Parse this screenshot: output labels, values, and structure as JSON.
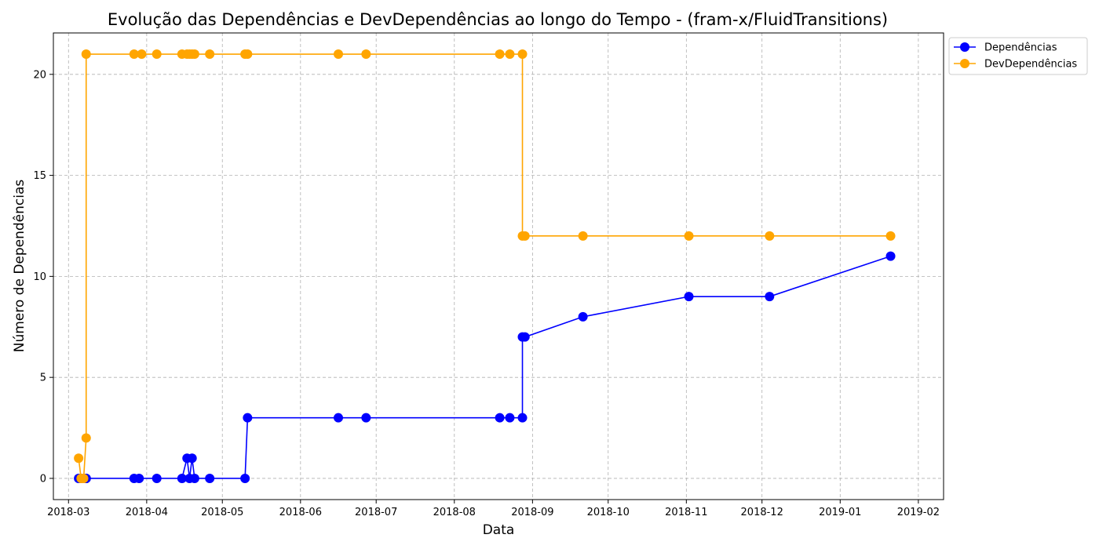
{
  "chart_data": {
    "type": "line",
    "title": "Evolução das Dependências e DevDependências ao longo do Tempo - (fram-x/FluidTransitions)",
    "xlabel": "Data",
    "ylabel": "Número de Dependências",
    "x_ticks": [
      "2018-03",
      "2018-04",
      "2018-05",
      "2018-06",
      "2018-07",
      "2018-08",
      "2018-09",
      "2018-10",
      "2018-11",
      "2018-12",
      "2019-01",
      "2019-02"
    ],
    "y_ticks": [
      0,
      5,
      10,
      15,
      20
    ],
    "xlim": [
      "2018-02-23",
      "2019-02-11"
    ],
    "ylim": [
      -1.05,
      22.05
    ],
    "grid": true,
    "legend_position": "top-right",
    "series": [
      {
        "name": "Dependências",
        "color": "#0000ff",
        "points": [
          [
            "2018-03-05",
            0
          ],
          [
            "2018-03-06",
            0
          ],
          [
            "2018-03-08",
            0
          ],
          [
            "2018-03-08",
            0
          ],
          [
            "2018-03-27",
            0
          ],
          [
            "2018-03-29",
            0
          ],
          [
            "2018-04-05",
            0
          ],
          [
            "2018-04-15",
            0
          ],
          [
            "2018-04-17",
            1
          ],
          [
            "2018-04-18",
            0
          ],
          [
            "2018-04-19",
            1
          ],
          [
            "2018-04-20",
            0
          ],
          [
            "2018-04-26",
            0
          ],
          [
            "2018-05-10",
            0
          ],
          [
            "2018-05-11",
            3
          ],
          [
            "2018-06-16",
            3
          ],
          [
            "2018-06-27",
            3
          ],
          [
            "2018-08-19",
            3
          ],
          [
            "2018-08-23",
            3
          ],
          [
            "2018-08-28",
            3
          ],
          [
            "2018-08-28",
            7
          ],
          [
            "2018-08-29",
            7
          ],
          [
            "2018-09-21",
            8
          ],
          [
            "2018-11-02",
            9
          ],
          [
            "2018-12-04",
            9
          ],
          [
            "2019-01-21",
            11
          ]
        ]
      },
      {
        "name": "DevDependências",
        "color": "#ffa500",
        "points": [
          [
            "2018-03-05",
            1
          ],
          [
            "2018-03-06",
            0
          ],
          [
            "2018-03-07",
            0
          ],
          [
            "2018-03-08",
            2
          ],
          [
            "2018-03-08",
            21
          ],
          [
            "2018-03-27",
            21
          ],
          [
            "2018-03-30",
            21
          ],
          [
            "2018-04-05",
            21
          ],
          [
            "2018-04-15",
            21
          ],
          [
            "2018-04-17",
            21
          ],
          [
            "2018-04-18",
            21
          ],
          [
            "2018-04-19",
            21
          ],
          [
            "2018-04-20",
            21
          ],
          [
            "2018-04-26",
            21
          ],
          [
            "2018-05-10",
            21
          ],
          [
            "2018-05-11",
            21
          ],
          [
            "2018-06-16",
            21
          ],
          [
            "2018-06-27",
            21
          ],
          [
            "2018-08-19",
            21
          ],
          [
            "2018-08-23",
            21
          ],
          [
            "2018-08-28",
            21
          ],
          [
            "2018-08-28",
            12
          ],
          [
            "2018-08-29",
            12
          ],
          [
            "2018-09-21",
            12
          ],
          [
            "2018-11-02",
            12
          ],
          [
            "2018-12-04",
            12
          ],
          [
            "2019-01-21",
            12
          ]
        ]
      }
    ]
  }
}
